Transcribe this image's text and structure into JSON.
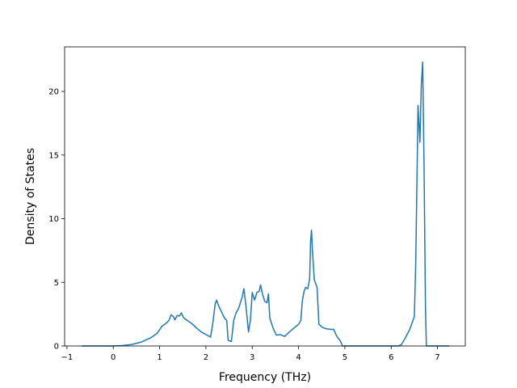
{
  "chart_data": {
    "type": "line",
    "title": "",
    "xlabel": "Frequency (THz)",
    "ylabel": "Density of States",
    "xlim": [
      -1.05,
      7.6
    ],
    "ylim": [
      0,
      23.5
    ],
    "xticks": [
      -1,
      0,
      1,
      2,
      3,
      4,
      5,
      6,
      7
    ],
    "yticks": [
      0,
      5,
      10,
      15,
      20
    ],
    "grid": false,
    "series": [
      {
        "name": "",
        "color": "#1f77b4",
        "points": [
          [
            -0.68,
            0.0
          ],
          [
            0.0,
            0.0
          ],
          [
            0.2,
            0.03
          ],
          [
            0.4,
            0.12
          ],
          [
            0.6,
            0.3
          ],
          [
            0.8,
            0.62
          ],
          [
            0.95,
            1.0
          ],
          [
            1.05,
            1.55
          ],
          [
            1.15,
            1.8
          ],
          [
            1.2,
            2.0
          ],
          [
            1.25,
            2.45
          ],
          [
            1.3,
            2.3
          ],
          [
            1.33,
            2.05
          ],
          [
            1.38,
            2.4
          ],
          [
            1.43,
            2.35
          ],
          [
            1.47,
            2.6
          ],
          [
            1.52,
            2.2
          ],
          [
            1.6,
            2.0
          ],
          [
            1.7,
            1.75
          ],
          [
            1.8,
            1.4
          ],
          [
            1.9,
            1.1
          ],
          [
            2.0,
            0.9
          ],
          [
            2.1,
            0.7
          ],
          [
            2.15,
            1.8
          ],
          [
            2.2,
            3.3
          ],
          [
            2.23,
            3.6
          ],
          [
            2.27,
            3.2
          ],
          [
            2.32,
            2.8
          ],
          [
            2.4,
            2.2
          ],
          [
            2.45,
            2.0
          ],
          [
            2.48,
            0.45
          ],
          [
            2.55,
            0.35
          ],
          [
            2.6,
            2.0
          ],
          [
            2.65,
            2.6
          ],
          [
            2.7,
            2.9
          ],
          [
            2.78,
            3.8
          ],
          [
            2.82,
            4.5
          ],
          [
            2.86,
            3.3
          ],
          [
            2.92,
            1.1
          ],
          [
            2.96,
            2.0
          ],
          [
            3.0,
            4.2
          ],
          [
            3.05,
            3.6
          ],
          [
            3.1,
            4.2
          ],
          [
            3.15,
            4.3
          ],
          [
            3.18,
            4.8
          ],
          [
            3.22,
            4.1
          ],
          [
            3.27,
            3.5
          ],
          [
            3.32,
            3.4
          ],
          [
            3.35,
            4.1
          ],
          [
            3.38,
            2.2
          ],
          [
            3.45,
            1.4
          ],
          [
            3.52,
            0.85
          ],
          [
            3.6,
            0.9
          ],
          [
            3.7,
            0.75
          ],
          [
            3.8,
            1.1
          ],
          [
            3.9,
            1.4
          ],
          [
            4.0,
            1.7
          ],
          [
            4.05,
            2.0
          ],
          [
            4.08,
            3.5
          ],
          [
            4.12,
            4.3
          ],
          [
            4.15,
            4.6
          ],
          [
            4.2,
            4.5
          ],
          [
            4.24,
            5.3
          ],
          [
            4.26,
            8.2
          ],
          [
            4.28,
            9.1
          ],
          [
            4.3,
            7.5
          ],
          [
            4.34,
            5.2
          ],
          [
            4.4,
            4.6
          ],
          [
            4.44,
            1.7
          ],
          [
            4.52,
            1.45
          ],
          [
            4.6,
            1.35
          ],
          [
            4.7,
            1.3
          ],
          [
            4.76,
            1.3
          ],
          [
            4.82,
            0.8
          ],
          [
            4.9,
            0.4
          ],
          [
            4.95,
            0.0
          ],
          [
            6.15,
            0.0
          ],
          [
            6.22,
            0.1
          ],
          [
            6.3,
            0.6
          ],
          [
            6.4,
            1.3
          ],
          [
            6.5,
            2.3
          ],
          [
            6.53,
            6.5
          ],
          [
            6.58,
            18.9
          ],
          [
            6.62,
            16.0
          ],
          [
            6.65,
            20.5
          ],
          [
            6.68,
            22.3
          ],
          [
            6.71,
            14.0
          ],
          [
            6.74,
            3.0
          ],
          [
            6.76,
            0.0
          ],
          [
            7.25,
            0.0
          ]
        ]
      }
    ]
  }
}
